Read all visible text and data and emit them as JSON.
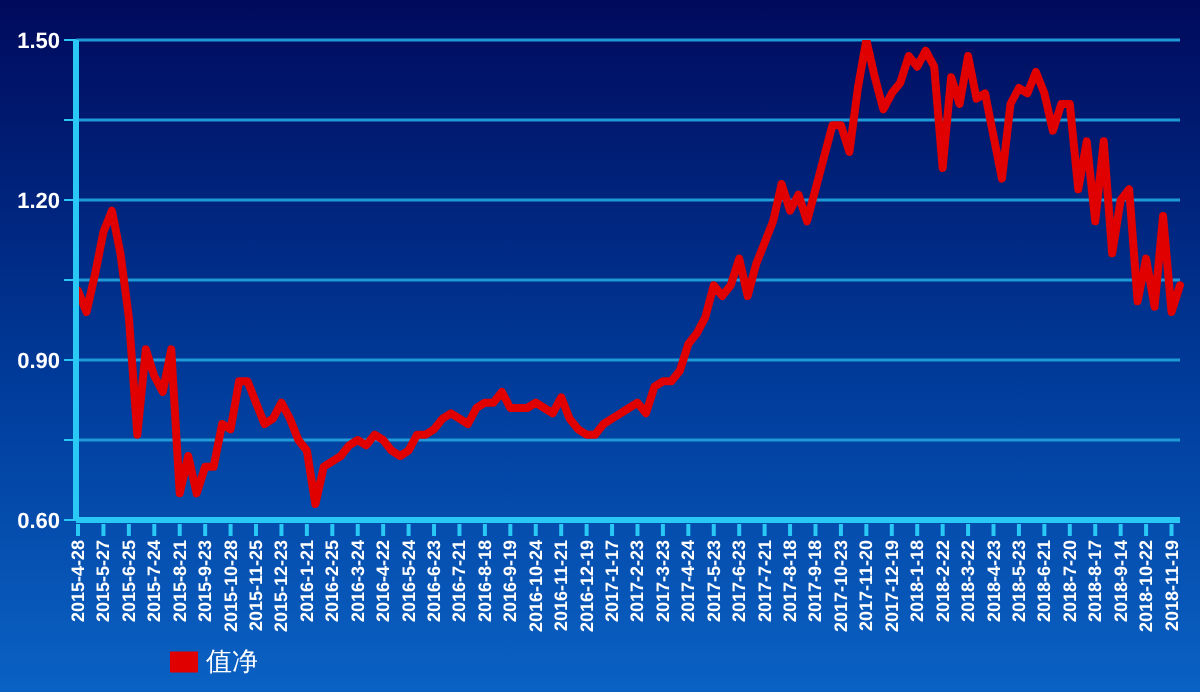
{
  "chart_data": {
    "type": "line",
    "categories": [
      "2015-4-28",
      null,
      null,
      "2015-5-27",
      null,
      null,
      "2015-6-25",
      null,
      null,
      "2015-7-24",
      null,
      null,
      "2015-8-21",
      null,
      null,
      "2015-9-23",
      null,
      null,
      "2015-10-28",
      null,
      null,
      "2015-11-25",
      null,
      null,
      "2015-12-23",
      null,
      null,
      "2016-1-21",
      null,
      null,
      "2016-2-25",
      null,
      null,
      "2016-3-24",
      null,
      null,
      "2016-4-22",
      null,
      null,
      "2016-5-24",
      null,
      null,
      "2016-6-23",
      null,
      null,
      "2016-7-21",
      null,
      null,
      "2016-8-18",
      null,
      null,
      "2016-9-19",
      null,
      null,
      "2016-10-24",
      null,
      null,
      "2016-11-21",
      null,
      null,
      "2016-12-19",
      null,
      null,
      "2017-1-17",
      null,
      null,
      "2017-2-23",
      null,
      null,
      "2017-3-23",
      null,
      null,
      "2017-4-24",
      null,
      null,
      "2017-5-23",
      null,
      null,
      "2017-6-23",
      null,
      null,
      "2017-7-21",
      null,
      null,
      "2017-8-18",
      null,
      null,
      "2017-9-18",
      null,
      null,
      "2017-10-23",
      null,
      null,
      "2017-11-20",
      null,
      null,
      "2017-12-19",
      null,
      null,
      "2018-1-18",
      null,
      null,
      "2018-2-22",
      null,
      null,
      "2018-3-22",
      null,
      null,
      "2018-4-23",
      null,
      null,
      "2018-5-23",
      null,
      null,
      "2018-6-21",
      null,
      null,
      "2018-7-20",
      null,
      null,
      "2018-8-17",
      null,
      null,
      "2018-9-14",
      null,
      null,
      "2018-10-22",
      null,
      null,
      "2018-11-19",
      null
    ],
    "series": [
      {
        "name": "值净",
        "color": "#e00000",
        "values": [
          1.03,
          0.99,
          1.06,
          1.14,
          1.18,
          1.1,
          0.98,
          0.76,
          0.92,
          0.87,
          0.84,
          0.92,
          0.65,
          0.72,
          0.65,
          0.7,
          0.7,
          0.78,
          0.77,
          0.86,
          0.86,
          0.82,
          0.78,
          0.79,
          0.82,
          0.79,
          0.75,
          0.73,
          0.63,
          0.7,
          0.71,
          0.72,
          0.74,
          0.75,
          0.74,
          0.76,
          0.75,
          0.73,
          0.72,
          0.73,
          0.76,
          0.76,
          0.77,
          0.79,
          0.8,
          0.79,
          0.78,
          0.81,
          0.82,
          0.82,
          0.84,
          0.81,
          0.81,
          0.81,
          0.82,
          0.81,
          0.8,
          0.83,
          0.79,
          0.77,
          0.76,
          0.76,
          0.78,
          0.79,
          0.8,
          0.81,
          0.82,
          0.8,
          0.85,
          0.86,
          0.86,
          0.88,
          0.93,
          0.95,
          0.98,
          1.04,
          1.02,
          1.04,
          1.09,
          1.02,
          1.08,
          1.12,
          1.16,
          1.23,
          1.18,
          1.21,
          1.16,
          1.22,
          1.28,
          1.34,
          1.34,
          1.29,
          1.41,
          1.5,
          1.43,
          1.37,
          1.4,
          1.42,
          1.47,
          1.45,
          1.48,
          1.45,
          1.26,
          1.43,
          1.38,
          1.47,
          1.39,
          1.4,
          1.32,
          1.24,
          1.38,
          1.41,
          1.4,
          1.44,
          1.4,
          1.33,
          1.38,
          1.38,
          1.22,
          1.31,
          1.16,
          1.31,
          1.1,
          1.2,
          1.22,
          1.01,
          1.09,
          1.0,
          1.17,
          0.99,
          1.04
        ]
      }
    ],
    "ylim": [
      0.6,
      1.5
    ],
    "yticks": [
      {
        "value": 0.6,
        "label": "0.60"
      },
      {
        "value": 0.75,
        "label": null
      },
      {
        "value": 0.9,
        "label": "0.90"
      },
      {
        "value": 1.05,
        "label": null
      },
      {
        "value": 1.2,
        "label": "1.20"
      },
      {
        "value": 1.35,
        "label": null
      },
      {
        "value": 1.5,
        "label": "1.50"
      }
    ],
    "grid": "y",
    "legend": "bottom",
    "marker": "none",
    "line_style": "solid"
  }
}
